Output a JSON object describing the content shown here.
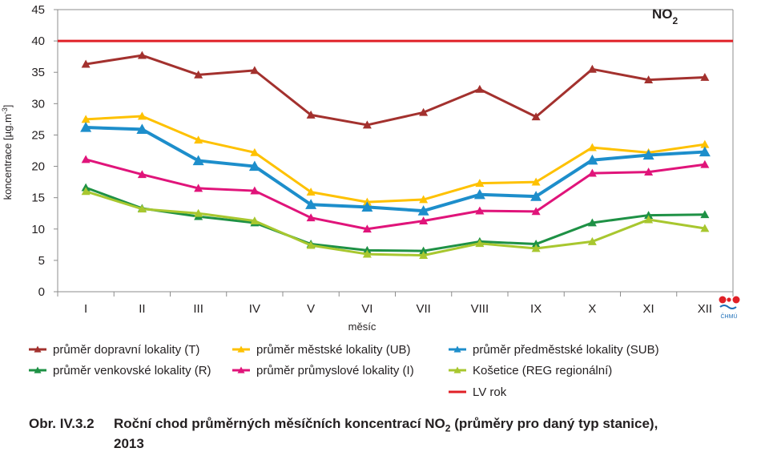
{
  "chart_data": {
    "type": "line",
    "categories": [
      "I",
      "II",
      "III",
      "IV",
      "V",
      "VI",
      "VII",
      "VIII",
      "IX",
      "X",
      "XI",
      "XII"
    ],
    "xlabel": "měsíc",
    "ylabel": "koncentrace [µg.m",
    "ylabel_superscript": "-3",
    "ylabel_close": "]",
    "ylim": [
      0,
      45
    ],
    "yticks": [
      0,
      5,
      10,
      15,
      20,
      25,
      30,
      35,
      40,
      45
    ],
    "grid": false,
    "legend_position": "bottom",
    "annotation": {
      "main": "NO",
      "sub": "2"
    },
    "logo_text": "ČHMÚ",
    "series": [
      {
        "name": "průměr dopravní lokality (T)",
        "color": "#a3312e",
        "marker": "triangle",
        "width": 3,
        "values": [
          36.3,
          37.7,
          34.6,
          35.3,
          28.2,
          26.6,
          28.6,
          32.3,
          27.9,
          35.5,
          33.8,
          34.2
        ]
      },
      {
        "name": "průměr městské lokality (UB)",
        "color": "#fec100",
        "marker": "triangle",
        "width": 3,
        "values": [
          27.5,
          28.0,
          24.2,
          22.2,
          15.9,
          14.3,
          14.7,
          17.3,
          17.5,
          23.0,
          22.2,
          23.5
        ]
      },
      {
        "name": "průměr předměstské lokality (SUB)",
        "color": "#1d8ecb",
        "marker": "triangle",
        "width": 4,
        "values": [
          26.2,
          25.9,
          20.9,
          20.0,
          13.9,
          13.5,
          12.9,
          15.5,
          15.2,
          21.0,
          21.8,
          22.3
        ]
      },
      {
        "name": "průměr venkovské lokality (R)",
        "color": "#1e9145",
        "marker": "triangle",
        "width": 3,
        "values": [
          16.6,
          13.3,
          12.0,
          11.0,
          7.6,
          6.6,
          6.5,
          8.0,
          7.6,
          11.0,
          12.2,
          12.3
        ]
      },
      {
        "name": "průměr průmyslové lokality (I)",
        "color": "#e0147a",
        "marker": "triangle",
        "width": 3,
        "values": [
          21.1,
          18.7,
          16.5,
          16.1,
          11.8,
          10.0,
          11.3,
          12.9,
          12.8,
          18.9,
          19.1,
          20.3
        ]
      },
      {
        "name": "Košetice (REG regionální)",
        "color": "#a8c72f",
        "marker": "triangle",
        "width": 3,
        "values": [
          16.0,
          13.2,
          12.5,
          11.3,
          7.4,
          6.0,
          5.8,
          7.7,
          6.9,
          8.0,
          11.5,
          10.1
        ]
      },
      {
        "name": "LV rok",
        "color": "#e02027",
        "marker": "none",
        "width": 3,
        "constant": 40
      }
    ]
  },
  "caption": {
    "prefix": "Obr. IV.3.2",
    "text": "Roční chod průměrných měsíčních koncentrací NO",
    "sub": "2",
    "text_after": " (průměry pro daný typ stanice),",
    "year": "2013"
  }
}
